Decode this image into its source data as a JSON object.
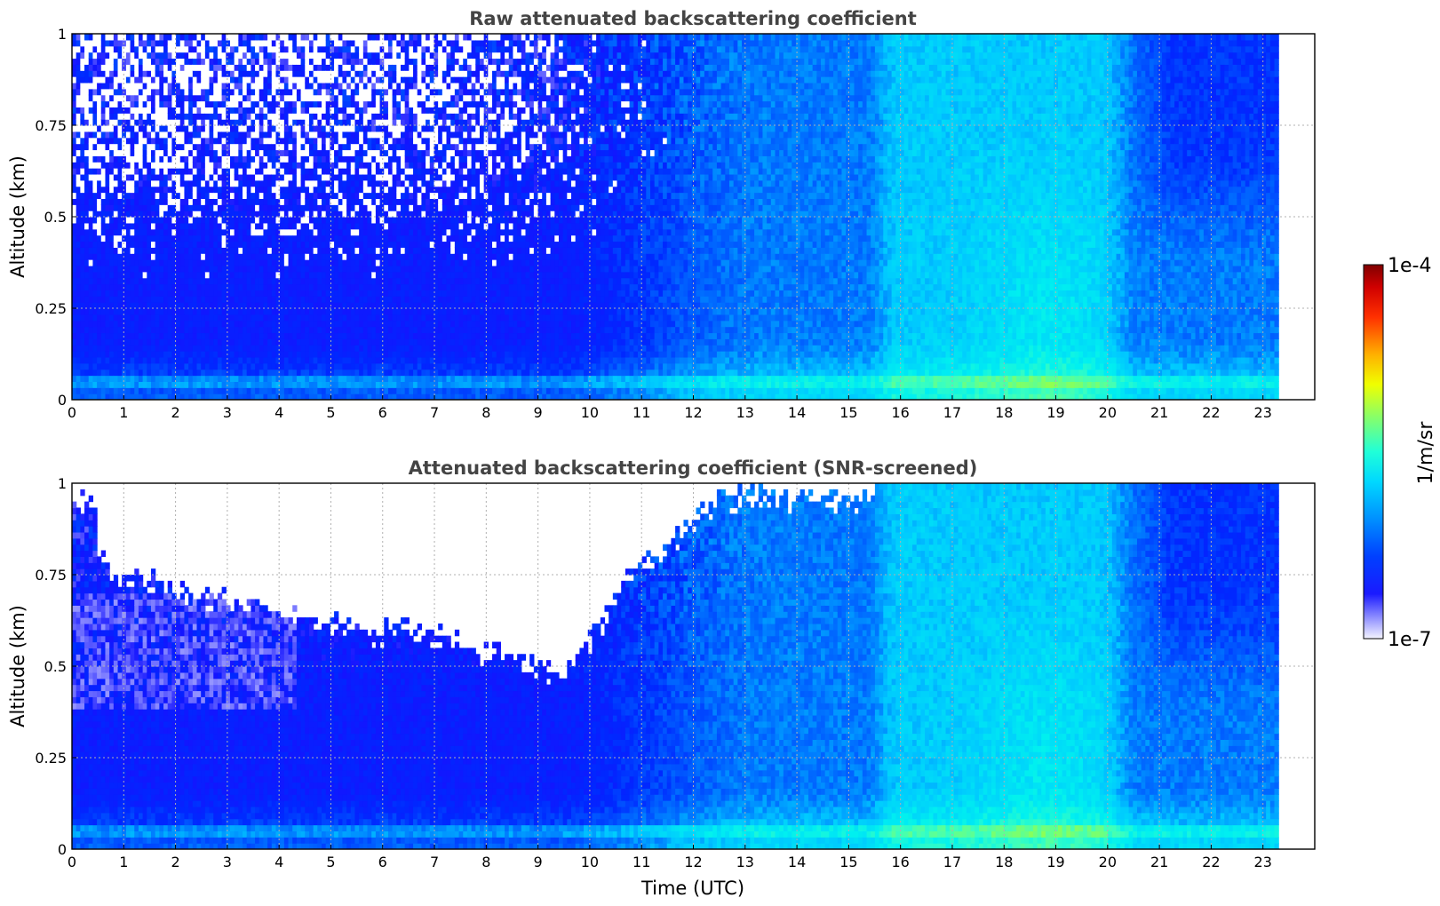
{
  "chart_data": [
    {
      "type": "heatmap",
      "title": "Raw attenuated backscattering coefficient",
      "ylabel": "Altitude (km)",
      "xlabel": "",
      "xlim": [
        0,
        24
      ],
      "xticks": [
        "0",
        "1",
        "2",
        "3",
        "4",
        "5",
        "6",
        "7",
        "8",
        "9",
        "10",
        "11",
        "12",
        "13",
        "14",
        "15",
        "16",
        "17",
        "18",
        "19",
        "20",
        "21",
        "22",
        "23"
      ],
      "ylim": [
        0,
        1
      ],
      "yticks": [
        "0",
        "0.25",
        "0.5",
        "0.75",
        "1"
      ],
      "data_end_time": 23.3,
      "grid": true,
      "screened": false
    },
    {
      "type": "heatmap",
      "title": "Attenuated backscattering coefficient (SNR-screened)",
      "ylabel": "Altitude (km)",
      "xlabel": "Time (UTC)",
      "xlim": [
        0,
        24
      ],
      "xticks": [
        "0",
        "1",
        "2",
        "3",
        "4",
        "5",
        "6",
        "7",
        "8",
        "9",
        "10",
        "11",
        "12",
        "13",
        "14",
        "15",
        "16",
        "17",
        "18",
        "19",
        "20",
        "21",
        "22",
        "23"
      ],
      "ylim": [
        0,
        1
      ],
      "yticks": [
        "0",
        "0.25",
        "0.5",
        "0.75",
        "1"
      ],
      "data_end_time": 23.3,
      "grid": true,
      "screened": true
    }
  ],
  "colorbar": {
    "label": "1/m/sr",
    "max_label": "1e-4",
    "min_label": "1e-7",
    "scale": "log",
    "range": [
      1e-07,
      0.0001
    ],
    "colors": [
      "#e8e8ff",
      "#8080ff",
      "#0000ff",
      "#00b0ff",
      "#00ffff",
      "#80ff80",
      "#ffff00",
      "#ff8000",
      "#ff0000",
      "#800000"
    ]
  }
}
